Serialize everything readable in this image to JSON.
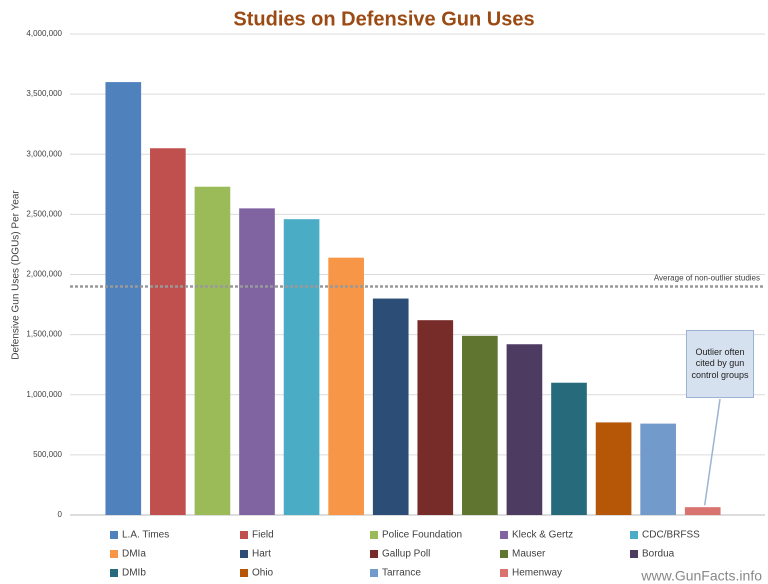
{
  "chart_data": {
    "type": "bar",
    "title": "Studies on Defensive Gun Uses",
    "y_label": "Defensive Gun Uses (DGUs) Per Year",
    "categories": [
      "L.A. Times",
      "Field",
      "Police Foundation",
      "Kleck & Gertz",
      "CDC/BRFSS",
      "DMIa",
      "Hart",
      "Gallup Poll",
      "Mauser",
      "Bordua",
      "DMIb",
      "Ohio",
      "Tarrance",
      "Hemenway"
    ],
    "values": [
      3600000,
      3050000,
      2730000,
      2550000,
      2460000,
      2140000,
      1800000,
      1620000,
      1490000,
      1420000,
      1100000,
      770000,
      760000,
      65000
    ],
    "colors": [
      "#4f81bd",
      "#c0504d",
      "#9bbb59",
      "#8064a2",
      "#4bacc6",
      "#f79646",
      "#2c4d75",
      "#772c2a",
      "#5f7530",
      "#4d3b62",
      "#276a7c",
      "#b65708",
      "#729aca",
      "#d9736f"
    ],
    "ylim": [
      0,
      4000000
    ],
    "yticks": [
      0,
      {
        "value": 500000,
        "label": "500,000"
      },
      {
        "value": 1000000,
        "label": "1,000,000"
      },
      {
        "value": 1500000,
        "label": "1,500,000"
      },
      {
        "value": 2000000,
        "label": "2,000,000"
      },
      {
        "value": 2500000,
        "label": "2,500,000"
      },
      {
        "value": 3000000,
        "label": "3,000,000"
      },
      {
        "value": 3500000,
        "label": "3,500,000"
      },
      {
        "value": 4000000,
        "label": "4,000,000"
      }
    ],
    "grid": true,
    "average": {
      "value": 1900000,
      "label": "Average of non-outlier studies"
    },
    "callout": "Outlier often cited by gun control groups",
    "watermark": "www.GunFacts.info"
  }
}
